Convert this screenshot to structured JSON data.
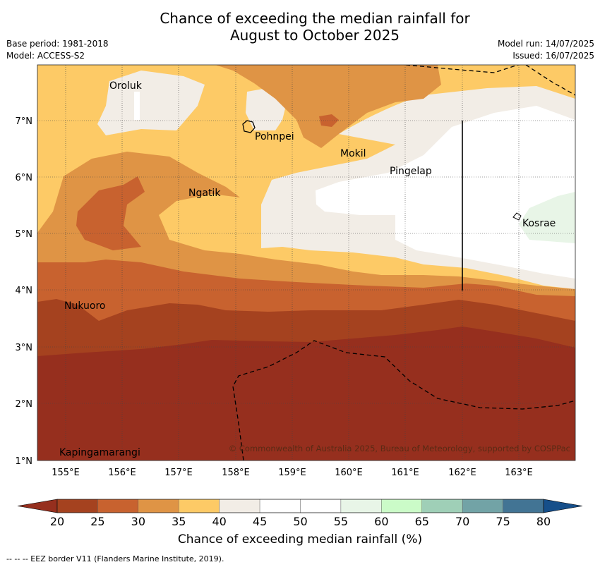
{
  "title_line1": "Chance of exceeding the median rainfall for",
  "title_line2": "August to October 2025",
  "meta": {
    "base_period": "Base period: 1981-2018",
    "model": "Model: ACCESS-S2",
    "model_run": "Model run: 14/07/2025",
    "issued": "Issued: 16/07/2025"
  },
  "copyright": "© Commonwealth of Australia 2025, Bureau of Meteorology, supported by COSPPac",
  "footer": "-- -- -- EEZ border V11 (Flanders Marine Institute, 2019).",
  "colorbar_label": "Chance of exceeding median rainfall (%)",
  "colorbar": {
    "ticks": [
      "20",
      "25",
      "30",
      "35",
      "40",
      "45",
      "50",
      "55",
      "60",
      "65",
      "70",
      "75",
      "80"
    ],
    "colors": [
      "#a5421f",
      "#c8622f",
      "#df9445",
      "#fdca66",
      "#f2ede6",
      "#ffffff",
      "#ffffff",
      "#e8f5e7",
      "#cbfbc8",
      "#9fcfb7",
      "#72a3a6",
      "#427494"
    ],
    "low_extend_color": "#962f1e",
    "high_extend_color": "#164f8a"
  },
  "axes": {
    "lon_ticks": [
      "155°E",
      "156°E",
      "157°E",
      "158°E",
      "159°E",
      "160°E",
      "161°E",
      "162°E",
      "163°E"
    ],
    "lat_ticks": [
      "7°N",
      "6°N",
      "5°N",
      "4°N",
      "3°N",
      "2°N",
      "1°N"
    ]
  },
  "places": [
    {
      "name": "Oroluk"
    },
    {
      "name": "Pohnpei"
    },
    {
      "name": "Mokil"
    },
    {
      "name": "Pingelap"
    },
    {
      "name": "Ngatik"
    },
    {
      "name": "Kosrae"
    },
    {
      "name": "Nukuoro"
    },
    {
      "name": "Kapingamarangi"
    }
  ]
}
